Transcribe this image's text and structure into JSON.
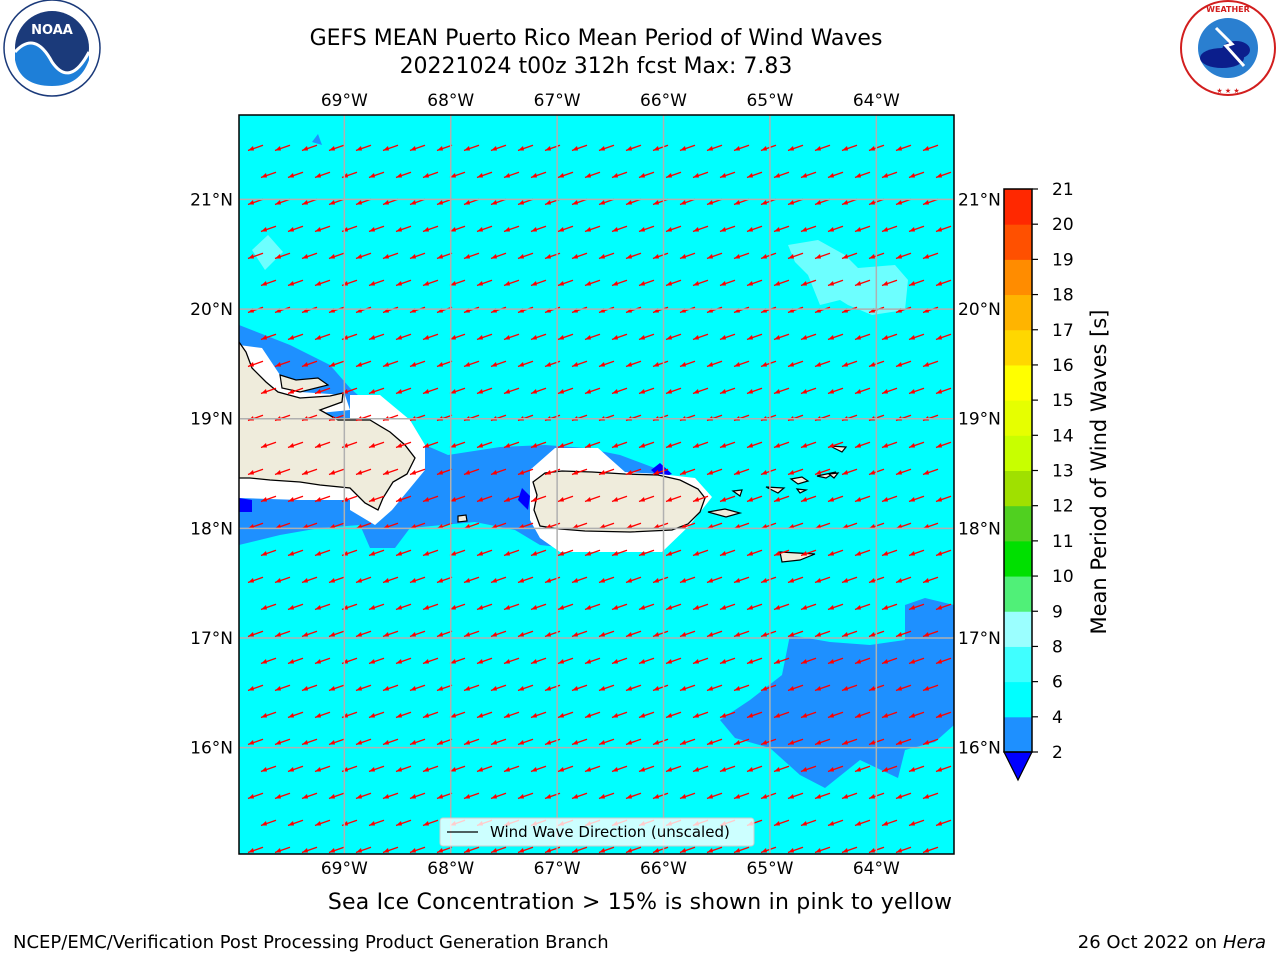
{
  "header": {
    "title_line1": "GEFS MEAN Puerto Rico Mean Period of Wind Waves",
    "title_line2": "20221024 t00z 312h fcst   Max: 7.83"
  },
  "logos": {
    "left": {
      "name": "noaa-logo",
      "text": "NOAA",
      "ring_text": "NATIONAL OCEANIC AND ATMOSPHERIC ADMINISTRATION · U.S. DEPARTMENT OF COMMERCE"
    },
    "right": {
      "name": "nws-logo",
      "ring_text": "NATIONAL WEATHER SERVICE"
    }
  },
  "map": {
    "lon_labels": [
      "69°W",
      "68°W",
      "67°W",
      "66°W",
      "65°W",
      "64°W"
    ],
    "lat_labels": [
      "21°N",
      "20°N",
      "19°N",
      "18°N",
      "17°N",
      "16°N"
    ],
    "lon_values": [
      -69,
      -68,
      -67,
      -66,
      -65,
      -64
    ],
    "lat_values": [
      21,
      20,
      19,
      18,
      17,
      16
    ],
    "extent": {
      "lon_min": -69.99,
      "lon_max": -63.27,
      "lat_min": 15.03,
      "lat_max": 21.77
    },
    "legend_label": "Wind Wave Direction (unscaled)",
    "background_class": "4-6 s",
    "colors": {
      "ocean_4_6": "#00ffff",
      "band_2_4": "#1e90ff",
      "below_2": "#0000ff",
      "land": "#efecdc",
      "arrows": "#ff0000",
      "grid": "#b0b0b0"
    }
  },
  "colorbar": {
    "label": "Mean Period of Wind Waves [s]",
    "ticks": [
      "2",
      "4",
      "6",
      "8",
      "9",
      "10",
      "11",
      "12",
      "13",
      "14",
      "15",
      "16",
      "17",
      "18",
      "19",
      "20",
      "21"
    ],
    "colors": [
      "#1e90ff",
      "#00ffff",
      "#40ffff",
      "#9bffff",
      "#50f078",
      "#00e000",
      "#50d020",
      "#a0e000",
      "#c8ff00",
      "#e6ff00",
      "#ffff00",
      "#ffd700",
      "#ffb400",
      "#ff8c00",
      "#ff5000",
      "#ff2800"
    ],
    "extend_below_color": "#0000ff"
  },
  "caption": "Sea Ice Concentration > 15% is shown in pink to yellow",
  "footer": {
    "left": "NCEP/EMC/Verification Post Processing Product Generation Branch",
    "right_date": "26 Oct 2022 on",
    "right_host": "Hera"
  }
}
